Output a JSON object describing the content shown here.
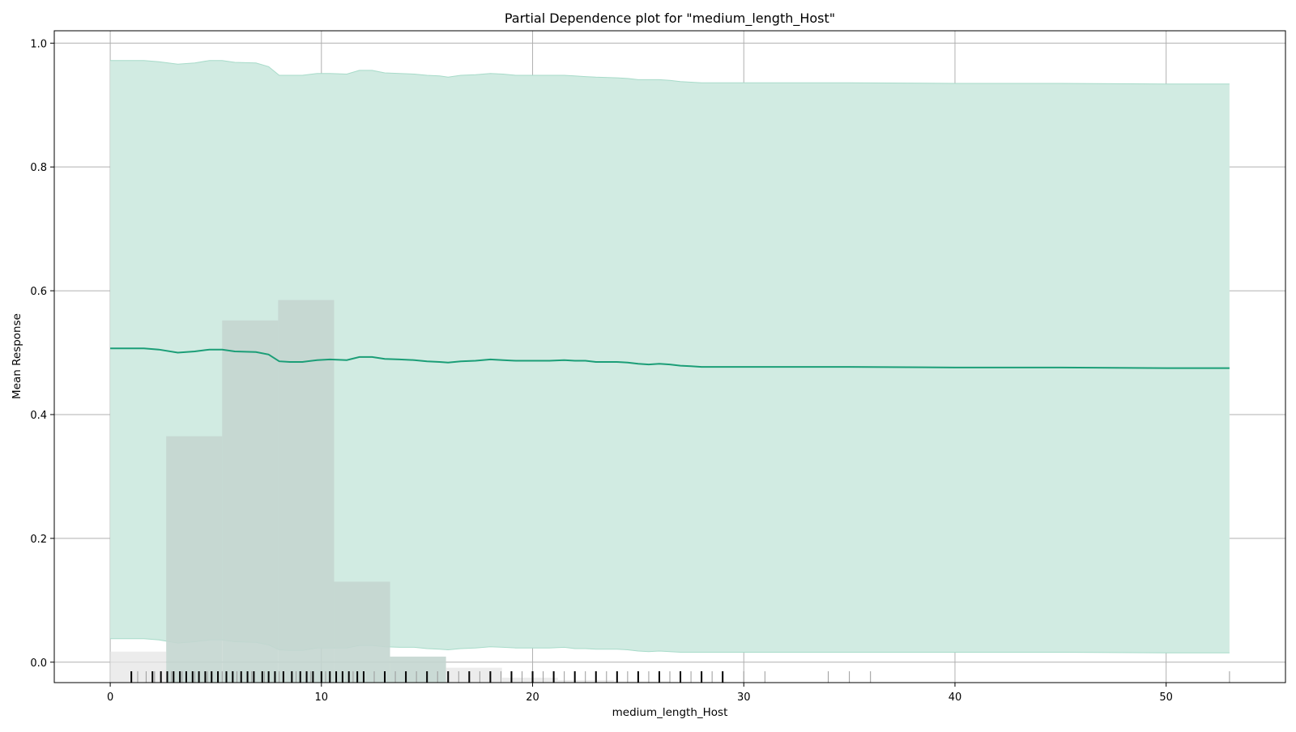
{
  "chart_data": {
    "type": "line",
    "title": "Partial Dependence plot for \"medium_length_Host\"",
    "xlabel": "medium_length_Host",
    "ylabel": "Mean Response",
    "xlim": [
      -2.65,
      55.65
    ],
    "ylim": [
      -0.033,
      1.02
    ],
    "grid": true,
    "legend": "none",
    "xticks": [
      0,
      10,
      20,
      30,
      40,
      50
    ],
    "yticks": [
      0.0,
      0.2,
      0.4,
      0.6,
      0.8,
      1.0
    ],
    "xtick_labels": [
      "0",
      "10",
      "20",
      "30",
      "40",
      "50"
    ],
    "ytick_labels": [
      "0.0",
      "0.2",
      "0.4",
      "0.6",
      "0.8",
      "1.0"
    ],
    "colors": {
      "line": "#1b9e77",
      "band": "#d1ebe2",
      "band_edge": "#a7dbc9",
      "histogram": "#c4d6d0",
      "histogram_outside": "#e5e5e5",
      "rug": "#000000",
      "grid": "#b0b0b0"
    },
    "series": [
      {
        "x": [
          0,
          1,
          1.6,
          2.3,
          3.2,
          4.0,
          4.7,
          5.3,
          5.9,
          6.9,
          7.5,
          8.0,
          8.5,
          9.1,
          9.8,
          10.4,
          11.2,
          11.8,
          12.4,
          13.0,
          13.7,
          14.4,
          15.0,
          15.6,
          16.0,
          16.6,
          17.3,
          18.0,
          18.6,
          19.2,
          20.0,
          20.8,
          21.5,
          22.0,
          22.5,
          23.0,
          24.0,
          24.5,
          25.0,
          25.5,
          26.0,
          26.5,
          27.0,
          27.5,
          28.0,
          29.0,
          30.0,
          35.0,
          40.0,
          45.0,
          50.0,
          53.0
        ],
        "y": [
          0.507,
          0.507,
          0.507,
          0.505,
          0.5,
          0.502,
          0.505,
          0.505,
          0.502,
          0.501,
          0.497,
          0.486,
          0.485,
          0.485,
          0.488,
          0.489,
          0.488,
          0.493,
          0.493,
          0.49,
          0.489,
          0.488,
          0.486,
          0.485,
          0.484,
          0.486,
          0.487,
          0.489,
          0.488,
          0.487,
          0.487,
          0.487,
          0.488,
          0.487,
          0.487,
          0.485,
          0.485,
          0.484,
          0.482,
          0.481,
          0.482,
          0.481,
          0.479,
          0.478,
          0.477,
          0.477,
          0.477,
          0.477,
          0.476,
          0.476,
          0.475,
          0.475
        ],
        "lower": [
          0.038,
          0.038,
          0.038,
          0.036,
          0.031,
          0.033,
          0.036,
          0.036,
          0.033,
          0.032,
          0.028,
          0.02,
          0.019,
          0.019,
          0.023,
          0.023,
          0.023,
          0.027,
          0.027,
          0.025,
          0.024,
          0.024,
          0.022,
          0.021,
          0.02,
          0.022,
          0.023,
          0.025,
          0.024,
          0.023,
          0.023,
          0.023,
          0.024,
          0.022,
          0.022,
          0.021,
          0.021,
          0.02,
          0.018,
          0.017,
          0.018,
          0.017,
          0.016,
          0.016,
          0.016,
          0.016,
          0.016,
          0.016,
          0.016,
          0.016,
          0.015,
          0.015
        ],
        "upper": [
          0.972,
          0.972,
          0.972,
          0.97,
          0.966,
          0.968,
          0.972,
          0.972,
          0.969,
          0.968,
          0.962,
          0.948,
          0.948,
          0.948,
          0.951,
          0.951,
          0.95,
          0.956,
          0.956,
          0.952,
          0.951,
          0.95,
          0.948,
          0.947,
          0.945,
          0.948,
          0.949,
          0.951,
          0.95,
          0.948,
          0.948,
          0.948,
          0.948,
          0.947,
          0.946,
          0.945,
          0.944,
          0.943,
          0.941,
          0.941,
          0.941,
          0.94,
          0.938,
          0.937,
          0.936,
          0.936,
          0.936,
          0.936,
          0.935,
          0.935,
          0.934,
          0.934
        ]
      }
    ],
    "histogram": {
      "bin_edges": [
        0,
        2.65,
        5.3,
        7.95,
        10.6,
        13.25,
        15.9,
        18.55,
        21.2,
        23.85,
        26.5,
        29.15,
        31.8,
        34.45,
        37.1,
        39.75,
        42.4,
        45.05,
        47.7,
        50.35,
        53.0
      ],
      "heights": [
        0.05,
        0.398,
        0.585,
        0.618,
        0.163,
        0.042,
        0.024,
        0.008,
        0.004,
        0.002,
        0.001,
        0,
        0,
        0,
        0,
        0,
        0,
        0,
        0,
        0
      ],
      "shaded_x_range": [
        2.65,
        15.9
      ]
    },
    "rug": {
      "major": [
        1,
        2,
        2.4,
        2.7,
        3,
        3.3,
        3.6,
        3.9,
        4.2,
        4.5,
        4.8,
        5.1,
        5.5,
        5.8,
        6.2,
        6.5,
        6.8,
        7.2,
        7.5,
        7.8,
        8.2,
        8.6,
        9.0,
        9.3,
        9.6,
        10.0,
        10.4,
        10.7,
        11.0,
        11.3,
        11.7,
        12.0,
        13,
        14,
        15,
        16,
        17,
        18,
        19,
        20,
        21,
        22,
        23,
        24,
        25,
        26,
        27,
        28,
        29
      ],
      "minor": [
        1.3,
        1.7,
        2.1,
        2.9,
        3.4,
        4.0,
        4.6,
        5.3,
        6.0,
        6.7,
        7.3,
        8.0,
        8.8,
        9.5,
        10.2,
        11.5,
        12.5,
        13.5,
        14.5,
        15.5,
        16.5,
        17.5,
        18.5,
        19.5,
        20.5,
        21.5,
        22.5,
        23.5,
        24.5,
        25.5,
        26.5,
        27.5,
        28.5,
        30,
        31,
        34,
        35,
        36,
        53
      ]
    }
  }
}
